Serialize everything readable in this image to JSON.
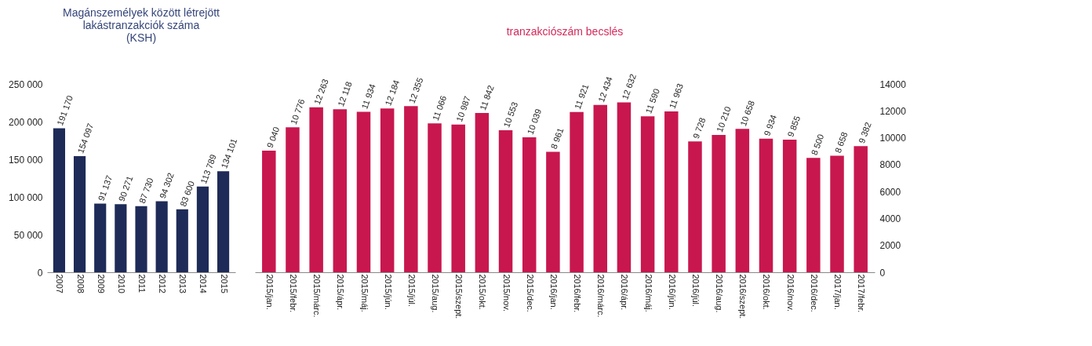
{
  "chart_data": [
    {
      "type": "bar",
      "title": [
        "Magánszemélyek között létrejött",
        "lakástranzakciók száma",
        "(KSH)"
      ],
      "categories": [
        "2007",
        "2008",
        "2009",
        "2010",
        "2011",
        "2012",
        "2013",
        "2014",
        "2015"
      ],
      "series": [
        {
          "color": "#1e2b58",
          "values": [
            191170,
            154097,
            91137,
            90271,
            87730,
            94302,
            83600,
            113789,
            134101
          ],
          "value_labels": [
            "191 170",
            "154 097",
            "91 137",
            "90 271",
            "87 730",
            "94 302",
            "83 600",
            "113 789",
            "134 101"
          ]
        }
      ],
      "ylim": [
        0,
        250000
      ],
      "yticks": [
        0,
        {
          "value": 50000,
          "label": "50 000"
        },
        {
          "value": 100000,
          "label": "100 000"
        },
        {
          "value": 150000,
          "label": "150 000"
        },
        {
          "value": 200000,
          "label": "200 000"
        },
        {
          "value": 250000,
          "label": "250 000"
        }
      ],
      "grid": false
    },
    {
      "type": "bar",
      "title": [
        "tranzakciószám becslés"
      ],
      "categories": [
        "2015/jan.",
        "2015/febr.",
        "2015/márc.",
        "2015/ápr.",
        "2015/máj.",
        "2015/jún.",
        "2015/júl.",
        "2015/aug.",
        "2015/szept.",
        "2015/okt.",
        "2015/nov.",
        "2015/dec.",
        "2016/jan.",
        "2016/febr.",
        "2016/márc.",
        "2016/ápr.",
        "2016/máj.",
        "2016/jún.",
        "2016/júl.",
        "2016/aug.",
        "2016/szept.",
        "2016/okt.",
        "2016/nov.",
        "2016/dec.",
        "2017/jan.",
        "2017/febr."
      ],
      "series": [
        {
          "color": "#c8174f",
          "axis": "y2",
          "values": [
            9040,
            10776,
            12263,
            12118,
            11934,
            12184,
            12355,
            11066,
            10987,
            11842,
            10553,
            10039,
            8961,
            11921,
            12434,
            12632,
            11590,
            11963,
            9728,
            10210,
            10658,
            9934,
            9855,
            8500,
            8658,
            9382
          ],
          "value_labels": [
            "9 040",
            "10 776",
            "12 263",
            "12 118",
            "11 934",
            "12 184",
            "12 355",
            "11 066",
            "10 987",
            "11 842",
            "10 553",
            "10 039",
            "8 961",
            "11 921",
            "12 434",
            "12 632",
            "11 590",
            "11 963",
            "9 728",
            "10 210",
            "10 658",
            "9 934",
            "9 855",
            "8 500",
            "8 658",
            "9 382"
          ]
        }
      ],
      "y2lim": [
        0,
        14000
      ],
      "y2ticks": [
        0,
        2000,
        4000,
        6000,
        8000,
        10000,
        12000,
        14000
      ],
      "grid": false
    }
  ]
}
